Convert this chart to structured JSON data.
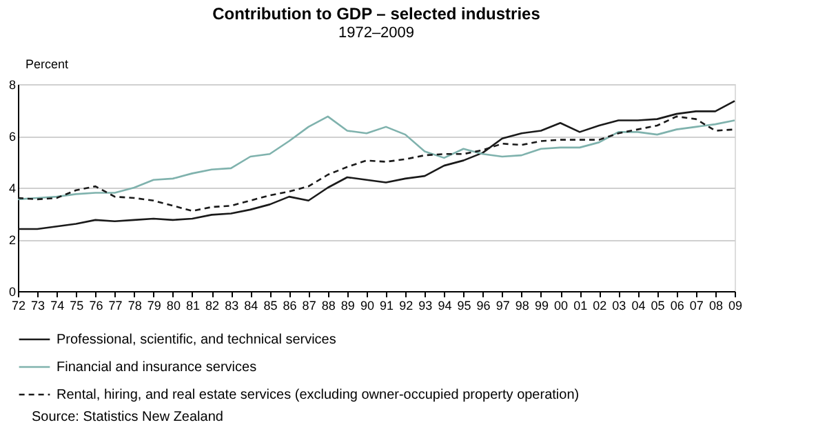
{
  "chart_data": {
    "type": "line",
    "title": "Contribution to GDP – selected industries",
    "subtitle": "1972–2009",
    "ylabel": "Percent",
    "categories": [
      "72",
      "73",
      "74",
      "75",
      "76",
      "77",
      "78",
      "79",
      "80",
      "81",
      "82",
      "83",
      "84",
      "85",
      "86",
      "87",
      "88",
      "89",
      "90",
      "91",
      "92",
      "93",
      "94",
      "95",
      "96",
      "97",
      "98",
      "99",
      "00",
      "01",
      "02",
      "03",
      "04",
      "05",
      "06",
      "07",
      "08",
      "09"
    ],
    "series": [
      {
        "name": "Professional, scientific, and technical services",
        "color": "#1a1a1a",
        "line_style": "solid",
        "values": [
          2.4,
          2.4,
          2.5,
          2.6,
          2.75,
          2.7,
          2.75,
          2.8,
          2.75,
          2.8,
          2.95,
          3.0,
          3.15,
          3.35,
          3.65,
          3.5,
          4.0,
          4.4,
          4.3,
          4.2,
          4.35,
          4.45,
          4.85,
          5.05,
          5.35,
          5.9,
          6.1,
          6.2,
          6.5,
          6.15,
          6.4,
          6.6,
          6.6,
          6.65,
          6.85,
          6.95,
          6.95,
          7.35
        ]
      },
      {
        "name": "Financial and insurance services",
        "color": "#7fb2ad",
        "line_style": "solid",
        "values": [
          3.55,
          3.6,
          3.65,
          3.75,
          3.8,
          3.8,
          4.0,
          4.3,
          4.35,
          4.55,
          4.7,
          4.75,
          5.2,
          5.3,
          5.8,
          6.35,
          6.75,
          6.2,
          6.1,
          6.35,
          6.05,
          5.4,
          5.15,
          5.5,
          5.3,
          5.2,
          5.25,
          5.5,
          5.55,
          5.55,
          5.75,
          6.15,
          6.15,
          6.05,
          6.25,
          6.35,
          6.45,
          6.6
        ]
      },
      {
        "name": "Rental, hiring, and real estate services (excluding owner-occupied property operation)",
        "color": "#1a1a1a",
        "line_style": "dashed",
        "values": [
          3.6,
          3.55,
          3.6,
          3.9,
          4.05,
          3.65,
          3.6,
          3.5,
          3.3,
          3.1,
          3.25,
          3.3,
          3.5,
          3.7,
          3.85,
          4.05,
          4.5,
          4.8,
          5.05,
          5.0,
          5.1,
          5.25,
          5.3,
          5.3,
          5.45,
          5.7,
          5.65,
          5.8,
          5.85,
          5.85,
          5.85,
          6.1,
          6.25,
          6.4,
          6.75,
          6.65,
          6.2,
          6.25
        ]
      }
    ],
    "ylim": [
      0,
      8
    ],
    "yticks": [
      0,
      2,
      4,
      6,
      8
    ],
    "grid": "y",
    "legend": "bottom",
    "annotations": [
      "Source: Statistics New Zealand"
    ]
  }
}
